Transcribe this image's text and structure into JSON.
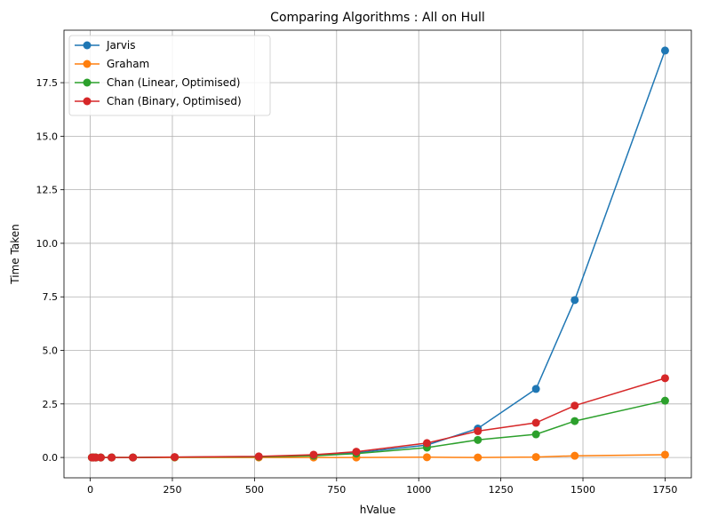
{
  "chart_data": {
    "type": "line",
    "title": "Comparing Algorithms : All on Hull",
    "xlabel": "hValue",
    "ylabel": "Time Taken",
    "xlim": [
      -80,
      1830
    ],
    "ylim": [
      -0.95,
      19.95
    ],
    "xticks": [
      0,
      250,
      500,
      750,
      1000,
      1250,
      1500,
      1750
    ],
    "xtick_labels": [
      "0",
      "250",
      "500",
      "750",
      "1000",
      "1250",
      "1500",
      "1750"
    ],
    "yticks": [
      0,
      2.5,
      5,
      7.5,
      10,
      12.5,
      15,
      17.5
    ],
    "ytick_labels": [
      "0.0",
      "2.5",
      "5.0",
      "7.5",
      "10.0",
      "12.5",
      "15.0",
      "17.5"
    ],
    "grid": true,
    "legend_position": "top-left",
    "x": [
      5,
      10,
      17,
      32,
      65,
      130,
      257,
      513,
      680,
      810,
      1025,
      1180,
      1357,
      1475,
      1750
    ],
    "series": [
      {
        "name": "Jarvis",
        "color": "#1f77b4",
        "values": [
          0,
          0,
          0,
          0,
          0,
          0,
          0.01,
          0.03,
          0.09,
          0.22,
          0.58,
          1.35,
          3.2,
          7.35,
          19.0
        ]
      },
      {
        "name": "Graham",
        "color": "#ff7f0e",
        "values": [
          0,
          0,
          0,
          0,
          0,
          0,
          0,
          0,
          0,
          0,
          0.01,
          0,
          0.02,
          0.08,
          0.13
        ]
      },
      {
        "name": "Chan (Linear, Optimised)",
        "color": "#2ca02c",
        "values": [
          0,
          0,
          0,
          0,
          0,
          0,
          0.01,
          0.03,
          0.08,
          0.18,
          0.46,
          0.82,
          1.08,
          1.7,
          2.65
        ]
      },
      {
        "name": "Chan (Binary, Optimised)",
        "color": "#d62728",
        "values": [
          0,
          0,
          0,
          0,
          0,
          0,
          0.02,
          0.05,
          0.13,
          0.27,
          0.67,
          1.23,
          1.62,
          2.42,
          3.7
        ]
      }
    ]
  }
}
